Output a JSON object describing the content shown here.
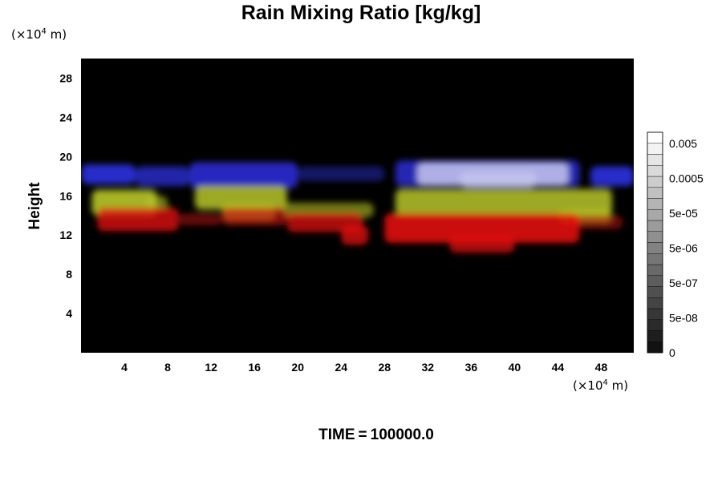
{
  "title": "Rain Mixing Ratio [kg/kg]",
  "y_unit": {
    "prefix": "(×10",
    "exp": "4",
    "suffix": " m)"
  },
  "x_unit": {
    "prefix": "(×10",
    "exp": "4",
    "suffix": " m)"
  },
  "time": {
    "label": "TIME",
    "eq": "=",
    "value": "100000.0"
  },
  "chart_data": {
    "type": "heatmap",
    "title": "Rain Mixing Ratio [kg/kg]",
    "xlabel": "",
    "ylabel": "Height",
    "xlim": [
      0,
      51
    ],
    "ylim": [
      0,
      30
    ],
    "x_ticks": [
      4,
      8,
      12,
      16,
      20,
      24,
      28,
      32,
      36,
      40,
      44,
      48
    ],
    "y_ticks": [
      4,
      8,
      12,
      16,
      20,
      24,
      28
    ],
    "background_color": "#000000",
    "colorbar": {
      "tick_labels": [
        "0.005",
        "0.0005",
        "5e-05",
        "5e-06",
        "5e-07",
        "5e-08",
        "0"
      ],
      "tick_values": [
        0.005,
        0.0005,
        5e-05,
        5e-06,
        5e-07,
        5e-08,
        0
      ],
      "colors": [
        "#000000",
        "#ffffff"
      ],
      "levels": 20
    },
    "layers": [
      {
        "name": "blue",
        "color": "#2f30e0",
        "cells": [
          {
            "x": [
              0,
              5
            ],
            "y": [
              17.2,
              19.2
            ],
            "a": 0.9
          },
          {
            "x": [
              5,
              10
            ],
            "y": [
              17.0,
              19.0
            ],
            "a": 0.75
          },
          {
            "x": [
              10,
              20
            ],
            "y": [
              16.8,
              19.4
            ],
            "a": 0.85
          },
          {
            "x": [
              20,
              28
            ],
            "y": [
              17.5,
              19.0
            ],
            "a": 0.45
          },
          {
            "x": [
              29,
              46
            ],
            "y": [
              17.0,
              19.6
            ],
            "a": 0.8
          },
          {
            "x": [
              47,
              51
            ],
            "y": [
              17.0,
              19.0
            ],
            "a": 0.9
          }
        ]
      },
      {
        "name": "white",
        "color": "#c8c8ee",
        "cells": [
          {
            "x": [
              31,
              45
            ],
            "y": [
              17.0,
              19.4
            ],
            "a": 0.85
          },
          {
            "x": [
              35,
              42
            ],
            "y": [
              16.8,
              18.4
            ],
            "a": 0.7
          }
        ]
      },
      {
        "name": "yellow",
        "color": "#b8c62a",
        "cells": [
          {
            "x": [
              1,
              7
            ],
            "y": [
              14.0,
              16.6
            ],
            "a": 0.9
          },
          {
            "x": [
              6,
              8
            ],
            "y": [
              14.5,
              16.0
            ],
            "a": 0.6
          },
          {
            "x": [
              10.5,
              19
            ],
            "y": [
              14.6,
              17.0
            ],
            "a": 0.85
          },
          {
            "x": [
              13,
              18
            ],
            "y": [
              13.5,
              15.2
            ],
            "a": 0.7
          },
          {
            "x": [
              18.5,
              27
            ],
            "y": [
              13.8,
              15.3
            ],
            "a": 0.6
          },
          {
            "x": [
              29,
              49
            ],
            "y": [
              14.0,
              16.7
            ],
            "a": 0.85
          },
          {
            "x": [
              44,
              49
            ],
            "y": [
              13.2,
              14.6
            ],
            "a": 0.7
          }
        ]
      },
      {
        "name": "red",
        "color": "#e01010",
        "cells": [
          {
            "x": [
              1.5,
              9
            ],
            "y": [
              12.4,
              14.8
            ],
            "a": 0.8
          },
          {
            "x": [
              9,
              13
            ],
            "y": [
              13.0,
              14.2
            ],
            "a": 0.45
          },
          {
            "x": [
              13,
              19
            ],
            "y": [
              13.0,
              14.8
            ],
            "a": 0.6
          },
          {
            "x": [
              19,
              26
            ],
            "y": [
              12.3,
              14.3
            ],
            "a": 0.75
          },
          {
            "x": [
              24,
              26.5
            ],
            "y": [
              11.0,
              13.0
            ],
            "a": 0.8
          },
          {
            "x": [
              28,
              46
            ],
            "y": [
              11.2,
              14.2
            ],
            "a": 0.9
          },
          {
            "x": [
              34,
              40
            ],
            "y": [
              10.2,
              12.0
            ],
            "a": 0.75
          },
          {
            "x": [
              45,
              50
            ],
            "y": [
              12.6,
              14.0
            ],
            "a": 0.45
          }
        ]
      }
    ]
  }
}
